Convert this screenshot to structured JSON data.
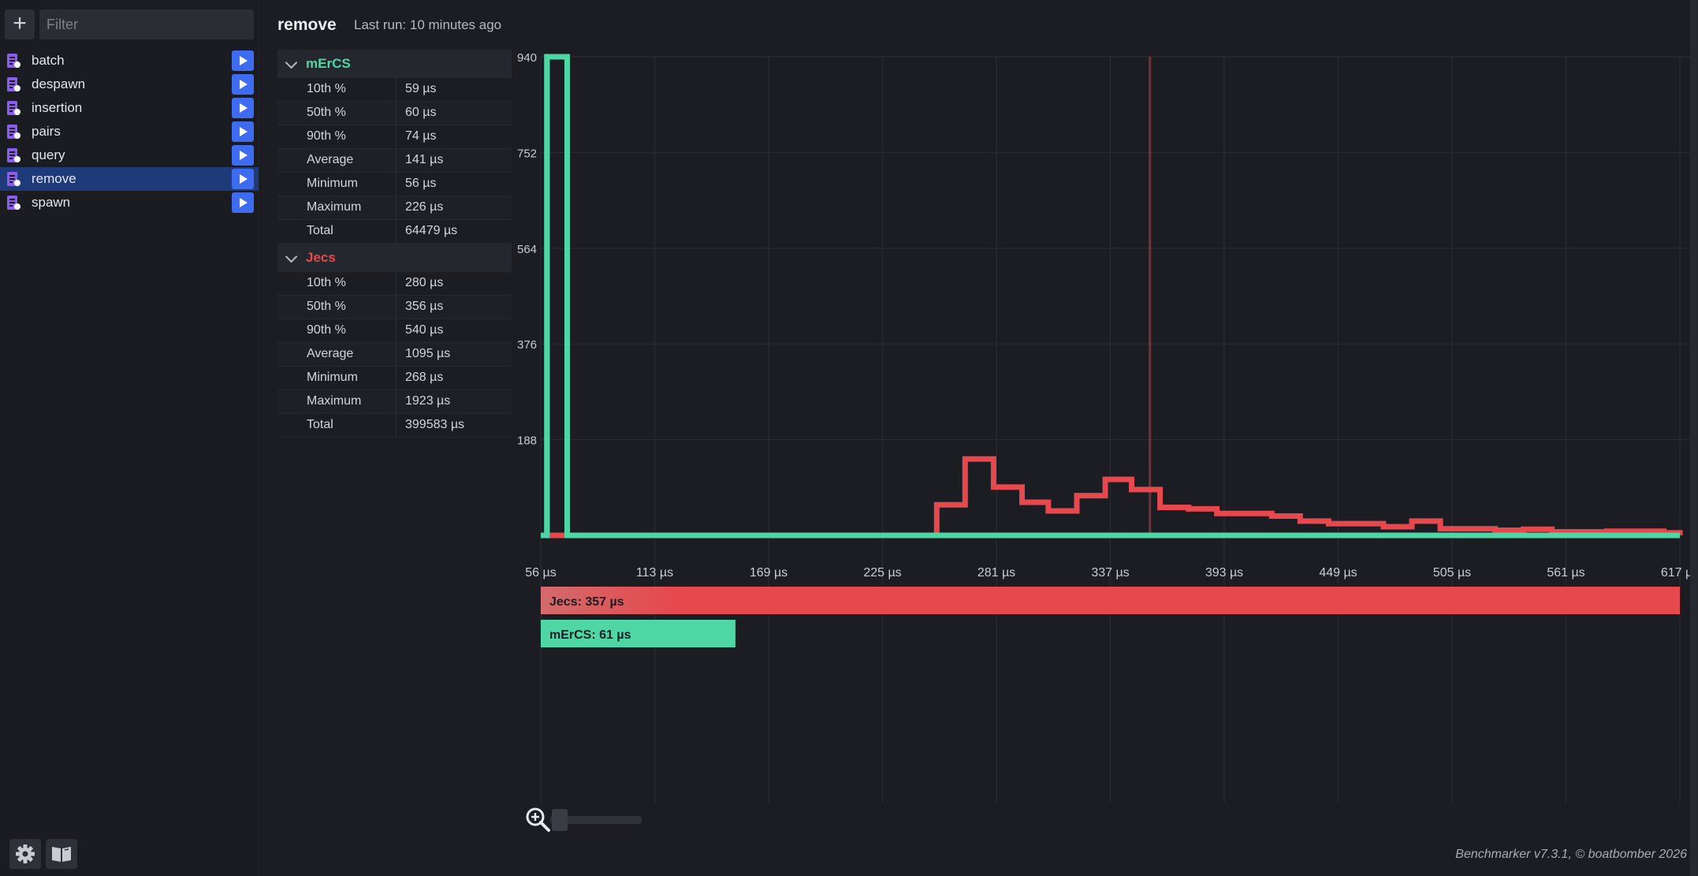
{
  "sidebar": {
    "add_label": "+",
    "filter_placeholder": "Filter",
    "items": [
      {
        "label": "batch",
        "active": false
      },
      {
        "label": "despawn",
        "active": false
      },
      {
        "label": "insertion",
        "active": false
      },
      {
        "label": "pairs",
        "active": false
      },
      {
        "label": "query",
        "active": false
      },
      {
        "label": "remove",
        "active": true
      },
      {
        "label": "spawn",
        "active": false
      }
    ],
    "footer": {
      "settings_icon": "gear-icon",
      "docs_icon": "book-icon"
    }
  },
  "header": {
    "title": "remove",
    "last_run": "Last run: 10 minutes ago"
  },
  "stats": [
    {
      "name": "mErCS",
      "color": "#4fd6a5",
      "rows": [
        {
          "label": "10th %",
          "value": "59 µs"
        },
        {
          "label": "50th %",
          "value": "60 µs"
        },
        {
          "label": "90th %",
          "value": "74 µs"
        },
        {
          "label": "Average",
          "value": "141 µs"
        },
        {
          "label": "Minimum",
          "value": "56 µs"
        },
        {
          "label": "Maximum",
          "value": "226 µs"
        },
        {
          "label": "Total",
          "value": "64479 µs"
        }
      ]
    },
    {
      "name": "Jecs",
      "color": "#e5484d",
      "rows": [
        {
          "label": "10th %",
          "value": "280 µs"
        },
        {
          "label": "50th %",
          "value": "356 µs"
        },
        {
          "label": "90th %",
          "value": "540 µs"
        },
        {
          "label": "Average",
          "value": "1095 µs"
        },
        {
          "label": "Minimum",
          "value": "268 µs"
        },
        {
          "label": "Maximum",
          "value": "1923 µs"
        },
        {
          "label": "Total",
          "value": "399583 µs"
        }
      ]
    }
  ],
  "chart_data": {
    "type": "line",
    "step": true,
    "x_ticks": [
      "56 µs",
      "113 µs",
      "169 µs",
      "225 µs",
      "281 µs",
      "337 µs",
      "393 µs",
      "449 µs",
      "505 µs",
      "561 µs",
      "617 µs"
    ],
    "y_ticks": [
      "940",
      "752",
      "564",
      "376",
      "188"
    ],
    "xlim": [
      56,
      617
    ],
    "ylim": [
      0,
      940
    ],
    "grid": true,
    "series": [
      {
        "name": "mErCS",
        "color": "#4fd6a5",
        "x": [
          56,
          59,
          60,
          69,
          617
        ],
        "y": [
          0,
          940,
          940,
          0,
          0
        ]
      },
      {
        "name": "Jecs",
        "color": "#e5484d",
        "x": [
          56,
          69,
          247,
          251,
          265,
          279,
          293,
          306,
          320,
          334,
          347,
          361,
          375,
          389,
          402,
          416,
          430,
          444,
          457,
          471,
          485,
          499,
          512,
          526,
          540,
          554,
          567,
          581,
          595,
          609,
          617
        ],
        "y": [
          0,
          0,
          0,
          60,
          150,
          95,
          65,
          48,
          78,
          110,
          90,
          55,
          52,
          43,
          43,
          38,
          28,
          23,
          23,
          17,
          28,
          13,
          13,
          10,
          12,
          7,
          7,
          8,
          8,
          5,
          0
        ]
      }
    ],
    "markers": [
      {
        "x": 60,
        "color": "#4fd6a5"
      },
      {
        "x": 356,
        "color": "#e5484d"
      }
    ],
    "summary_bars": [
      {
        "label": "Jecs: 357 µs",
        "value": 357,
        "color": "#e5484d"
      },
      {
        "label": "mErCS: 61 µs",
        "value": 61,
        "color": "#4fd6a5"
      }
    ],
    "summary_max": 357
  },
  "footer": {
    "version": "Benchmarker v7.3.1, © boatbomber 2026",
    "zoom_icon": "zoom-in-icon"
  }
}
